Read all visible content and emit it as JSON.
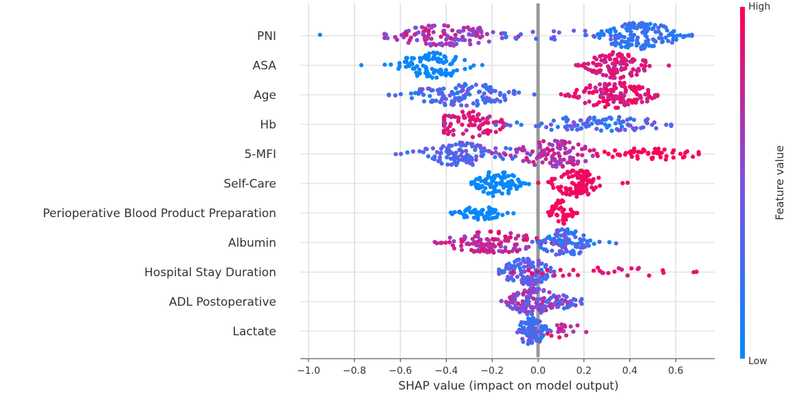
{
  "chart_data": {
    "type": "scatter",
    "subtype": "shap-beeswarm",
    "title": "",
    "xlabel": "SHAP value (impact on model output)",
    "ylabel": "",
    "xlim": [
      -1.0,
      0.75
    ],
    "xticks": [
      -1.0,
      -0.8,
      -0.6,
      -0.4,
      -0.2,
      0.0,
      0.2,
      0.4,
      0.6
    ],
    "xtick_labels": [
      "−1.0",
      "−0.8",
      "−0.6",
      "−0.4",
      "−0.2",
      "0.0",
      "0.2",
      "0.4",
      "0.6"
    ],
    "grid": true,
    "zero_line": true,
    "colorbar": {
      "label": "Feature value",
      "high_label": "High",
      "low_label": "Low",
      "low_color": "#008bfb",
      "mid_color": "#7c52e2",
      "high_color": "#ff0052"
    },
    "features": [
      {
        "name": "PNI",
        "clusters": [
          {
            "center": 0.44,
            "spread": 0.09,
            "count": 140,
            "value": 0.2,
            "vspread": 0.12,
            "height": 1.0
          },
          {
            "center": -0.4,
            "spread": 0.13,
            "count": 120,
            "value": 0.65,
            "vspread": 0.22,
            "height": 0.8
          },
          {
            "center": 0.1,
            "spread": 0.18,
            "count": 22,
            "value": 0.3,
            "vspread": 0.2,
            "height": 0.35
          }
        ],
        "min": -0.95,
        "max": 0.67
      },
      {
        "name": "ASA",
        "clusters": [
          {
            "center": -0.46,
            "spread": 0.08,
            "count": 95,
            "value": 0.03,
            "vspread": 0.04,
            "height": 0.95
          },
          {
            "center": 0.35,
            "spread": 0.07,
            "count": 110,
            "value": 0.85,
            "vspread": 0.12,
            "height": 1.0
          }
        ],
        "min": -0.77,
        "max": 0.57
      },
      {
        "name": "Age",
        "clusters": [
          {
            "center": -0.33,
            "spread": 0.12,
            "count": 125,
            "value": 0.3,
            "vspread": 0.2,
            "height": 0.85
          },
          {
            "center": 0.33,
            "spread": 0.09,
            "count": 140,
            "value": 0.88,
            "vspread": 0.12,
            "height": 1.0
          }
        ],
        "min": -0.65,
        "max": 0.52
      },
      {
        "name": "Hb",
        "clusters": [
          {
            "center": -0.3,
            "spread": 0.08,
            "count": 90,
            "value": 0.85,
            "vspread": 0.12,
            "height": 1.0
          },
          {
            "center": 0.25,
            "spread": 0.17,
            "count": 95,
            "value": 0.3,
            "vspread": 0.25,
            "height": 0.55
          }
        ],
        "min": -0.41,
        "max": 0.58
      },
      {
        "name": "5-MFI",
        "clusters": [
          {
            "center": -0.32,
            "spread": 0.12,
            "count": 110,
            "value": 0.35,
            "vspread": 0.22,
            "height": 0.85
          },
          {
            "center": 0.07,
            "spread": 0.09,
            "count": 110,
            "value": 0.72,
            "vspread": 0.15,
            "height": 1.0
          },
          {
            "center": 0.5,
            "spread": 0.11,
            "count": 55,
            "value": 0.98,
            "vspread": 0.03,
            "height": 0.4
          }
        ],
        "min": -0.62,
        "max": 0.7
      },
      {
        "name": "Self-Care",
        "clusters": [
          {
            "center": -0.18,
            "spread": 0.05,
            "count": 95,
            "value": 0.03,
            "vspread": 0.03,
            "height": 1.0
          },
          {
            "center": 0.17,
            "spread": 0.06,
            "count": 105,
            "value": 0.95,
            "vspread": 0.04,
            "height": 1.0
          }
        ],
        "min": -0.29,
        "max": 0.39
      },
      {
        "name": "Perioperative Blood Product Preparation",
        "clusters": [
          {
            "center": -0.25,
            "spread": 0.06,
            "count": 60,
            "value": 0.03,
            "vspread": 0.03,
            "height": 0.45
          },
          {
            "center": 0.1,
            "spread": 0.025,
            "count": 45,
            "value": 0.96,
            "vspread": 0.03,
            "height": 1.0
          }
        ],
        "min": -0.38,
        "max": 0.17
      },
      {
        "name": "Albumin",
        "clusters": [
          {
            "center": -0.2,
            "spread": 0.11,
            "count": 120,
            "value": 0.75,
            "vspread": 0.2,
            "height": 0.8
          },
          {
            "center": 0.12,
            "spread": 0.06,
            "count": 95,
            "value": 0.3,
            "vspread": 0.25,
            "height": 1.0
          }
        ],
        "min": -0.45,
        "max": 0.34
      },
      {
        "name": "Hospital Stay Duration",
        "clusters": [
          {
            "center": -0.05,
            "spread": 0.06,
            "count": 120,
            "value": 0.35,
            "vspread": 0.2,
            "height": 1.0
          },
          {
            "center": 0.28,
            "spread": 0.18,
            "count": 30,
            "value": 0.9,
            "vspread": 0.08,
            "height": 0.35
          }
        ],
        "min": -0.17,
        "max": 0.69
      },
      {
        "name": "ADL Postoperative",
        "clusters": [
          {
            "center": -0.02,
            "spread": 0.06,
            "count": 130,
            "value": 0.55,
            "vspread": 0.3,
            "height": 1.0
          },
          {
            "center": 0.13,
            "spread": 0.04,
            "count": 20,
            "value": 0.4,
            "vspread": 0.3,
            "height": 0.5
          }
        ],
        "min": -0.16,
        "max": 0.19
      },
      {
        "name": "Lactate",
        "clusters": [
          {
            "center": -0.03,
            "spread": 0.035,
            "count": 100,
            "value": 0.3,
            "vspread": 0.25,
            "height": 1.0
          },
          {
            "center": 0.12,
            "spread": 0.05,
            "count": 20,
            "value": 0.75,
            "vspread": 0.2,
            "height": 0.5
          }
        ],
        "min": -0.09,
        "max": 0.21
      }
    ]
  }
}
